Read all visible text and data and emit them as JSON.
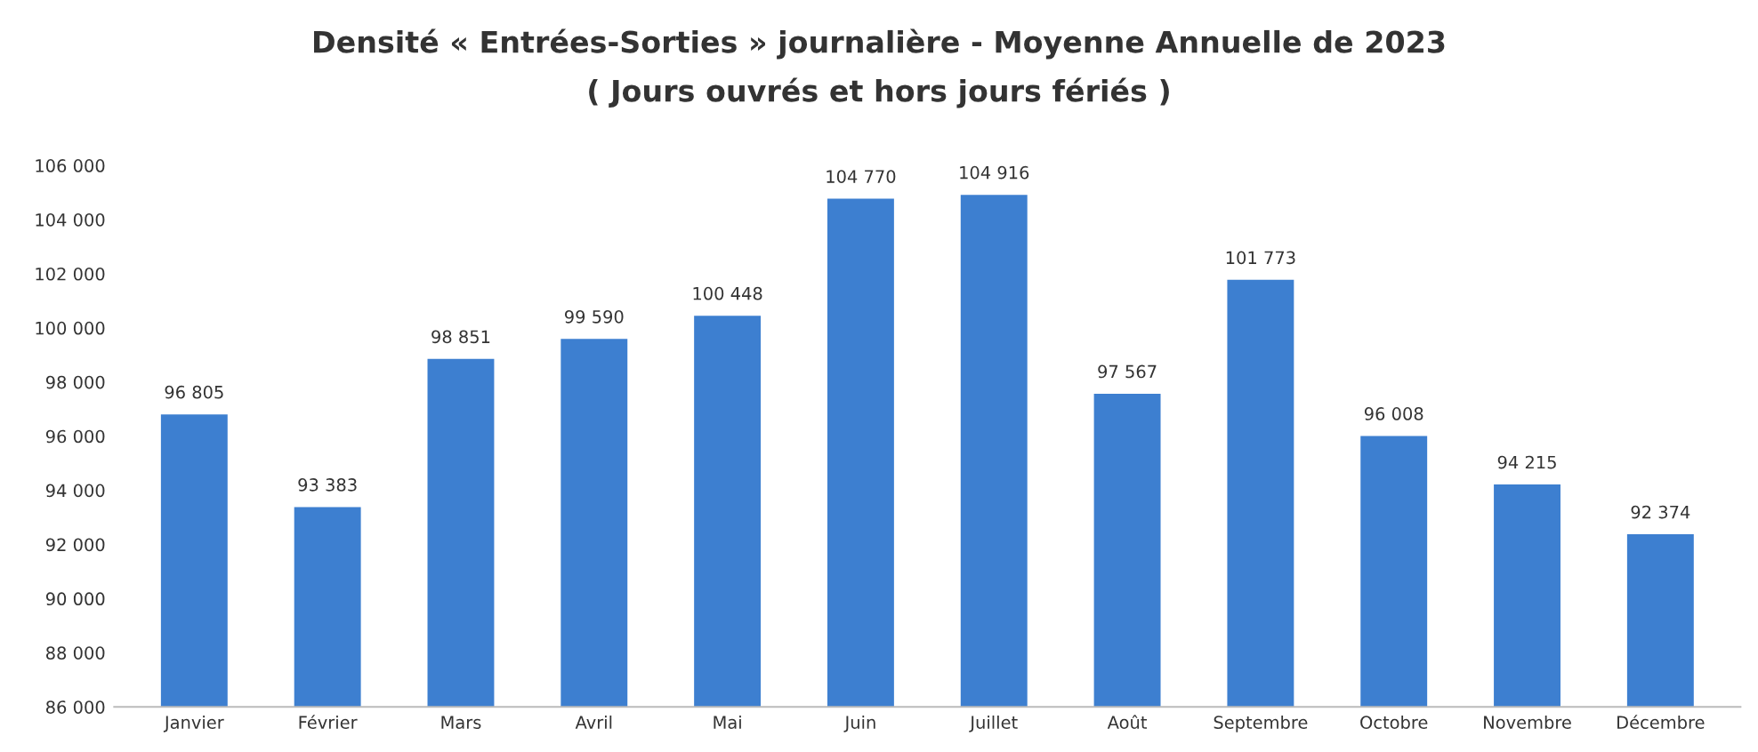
{
  "chart_data": {
    "type": "bar",
    "title": "Densité « Entrées-Sorties » journalière - Moyenne Annuelle de 2023",
    "subtitle": "( Jours ouvrés et hors jours fériés )",
    "categories": [
      "Janvier",
      "Février",
      "Mars",
      "Avril",
      "Mai",
      "Juin",
      "Juillet",
      "Août",
      "Septembre",
      "Octobre",
      "Novembre",
      "Décembre"
    ],
    "values": [
      96805,
      93383,
      98851,
      99590,
      100448,
      104770,
      104916,
      97567,
      101773,
      96008,
      94215,
      92374
    ],
    "value_labels": [
      "96 805",
      "93 383",
      "98 851",
      "99 590",
      "100 448",
      "104 770",
      "104 916",
      "97 567",
      "101 773",
      "96 008",
      "94 215",
      "92 374"
    ],
    "color": "#3d7fd0",
    "ylim": [
      86000,
      106000
    ],
    "yticks": [
      {
        "value": 86000,
        "label": "86 000"
      },
      {
        "value": 88000,
        "label": "88 000"
      },
      {
        "value": 90000,
        "label": "90 000"
      },
      {
        "value": 92000,
        "label": "92 000"
      },
      {
        "value": 94000,
        "label": "94 000"
      },
      {
        "value": 96000,
        "label": "96 000"
      },
      {
        "value": 98000,
        "label": "98 000"
      },
      {
        "value": 100000,
        "label": "100 000"
      },
      {
        "value": 102000,
        "label": "102 000"
      },
      {
        "value": 104000,
        "label": "104 000"
      },
      {
        "value": 106000,
        "label": "106 000"
      }
    ],
    "grid": false,
    "legend": false
  }
}
